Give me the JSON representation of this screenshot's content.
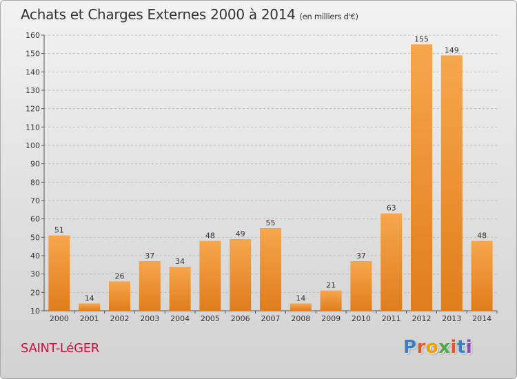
{
  "title": "Achats et Charges Externes 2000 à 2014",
  "unit": "(en milliers d'€)",
  "commune": "SAINT-LéGER",
  "logo": {
    "text": "Proxiti",
    "letter_colors": [
      "#3a7fc4",
      "#e8542a",
      "#f0a000",
      "#4aa84a",
      "#e8542a",
      "#3a7fc4",
      "#8a4ab0"
    ]
  },
  "colors": {
    "bar_light": "#f7a64c",
    "bar_dark": "#e07d1c",
    "grid": "#bdbdbd"
  },
  "chart_data": {
    "type": "bar",
    "categories": [
      "2000",
      "2001",
      "2002",
      "2003",
      "2004",
      "2005",
      "2006",
      "2007",
      "2008",
      "2009",
      "2010",
      "2011",
      "2012",
      "2013",
      "2014"
    ],
    "values": [
      51,
      14,
      26,
      37,
      34,
      48,
      49,
      55,
      14,
      21,
      37,
      63,
      155,
      149,
      48
    ],
    "ylim": [
      10,
      160
    ],
    "yticks": [
      10,
      20,
      30,
      40,
      50,
      60,
      70,
      80,
      90,
      100,
      110,
      120,
      130,
      140,
      150,
      160
    ],
    "grid": true,
    "data_labels": true
  }
}
